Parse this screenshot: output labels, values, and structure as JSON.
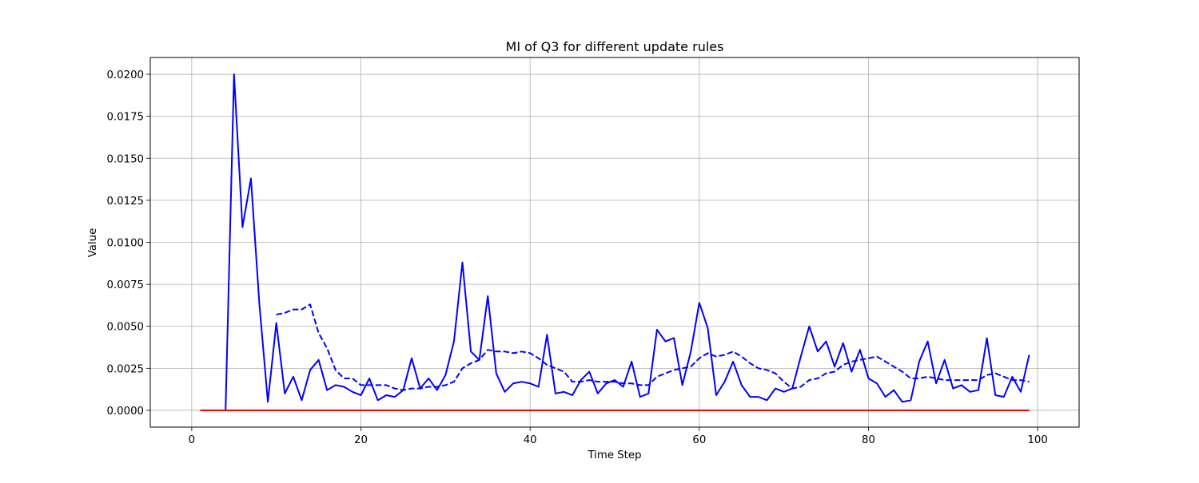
{
  "chart_data": {
    "type": "line",
    "title": "MI of Q3 for different update rules",
    "xlabel": "Time Step",
    "ylabel": "Value",
    "xlim": [
      -4.9,
      104.9
    ],
    "ylim": [
      -0.001,
      0.021
    ],
    "xticks": [
      0,
      20,
      40,
      60,
      80,
      100
    ],
    "yticks": [
      0.0,
      0.0025,
      0.005,
      0.0075,
      0.01,
      0.0125,
      0.015,
      0.0175,
      0.02
    ],
    "ytick_labels": [
      "0.0000",
      "0.0025",
      "0.0050",
      "0.0075",
      "0.0100",
      "0.0125",
      "0.0150",
      "0.0175",
      "0.0200"
    ],
    "grid": true,
    "legend": false,
    "series": [
      {
        "color": "#0000ff",
        "style": "solid",
        "x": [
          4,
          5,
          6,
          7,
          8,
          9,
          10,
          11,
          12,
          13,
          14,
          15,
          16,
          17,
          18,
          19,
          20,
          21,
          22,
          23,
          24,
          25,
          26,
          27,
          28,
          29,
          30,
          31,
          32,
          33,
          34,
          35,
          36,
          37,
          38,
          39,
          40,
          41,
          42,
          43,
          44,
          45,
          46,
          47,
          48,
          49,
          50,
          51,
          52,
          53,
          54,
          55,
          56,
          57,
          58,
          59,
          60,
          61,
          62,
          63,
          64,
          65,
          66,
          67,
          68,
          69,
          70,
          71,
          72,
          73,
          74,
          75,
          76,
          77,
          78,
          79,
          80,
          81,
          82,
          83,
          84,
          85,
          86,
          87,
          88,
          89,
          90,
          91,
          92,
          93,
          94,
          95,
          96,
          97,
          98,
          99
        ],
        "y": [
          0.0,
          0.02,
          0.0109,
          0.0138,
          0.0063,
          0.0005,
          0.0052,
          0.001,
          0.002,
          0.0006,
          0.0024,
          0.003,
          0.0012,
          0.0015,
          0.0014,
          0.0011,
          0.0009,
          0.0019,
          0.0006,
          0.0009,
          0.0008,
          0.0012,
          0.0031,
          0.0013,
          0.0019,
          0.0012,
          0.0021,
          0.0041,
          0.0088,
          0.0035,
          0.003,
          0.0068,
          0.0022,
          0.0011,
          0.0016,
          0.0017,
          0.0016,
          0.0014,
          0.0045,
          0.001,
          0.0011,
          0.0009,
          0.0018,
          0.0023,
          0.001,
          0.0016,
          0.0018,
          0.0014,
          0.0029,
          0.0008,
          0.001,
          0.0048,
          0.0041,
          0.0043,
          0.0015,
          0.0035,
          0.0064,
          0.0049,
          0.0009,
          0.0017,
          0.0029,
          0.0015,
          0.0008,
          0.0008,
          0.0006,
          0.0013,
          0.0011,
          0.0013,
          0.0032,
          0.005,
          0.0035,
          0.0041,
          0.0026,
          0.004,
          0.0023,
          0.0036,
          0.0019,
          0.0016,
          0.0008,
          0.0012,
          0.0005,
          0.0006,
          0.0029,
          0.0041,
          0.0016,
          0.003,
          0.0013,
          0.0015,
          0.0011,
          0.0012,
          0.0043,
          0.0009,
          0.0008,
          0.002,
          0.0011,
          0.0033
        ]
      },
      {
        "color": "#0000ff",
        "style": "dashed",
        "x": [
          10,
          11,
          12,
          13,
          14,
          15,
          16,
          17,
          18,
          19,
          20,
          21,
          22,
          23,
          24,
          25,
          26,
          27,
          28,
          29,
          30,
          31,
          32,
          33,
          34,
          35,
          36,
          37,
          38,
          39,
          40,
          41,
          42,
          43,
          44,
          45,
          46,
          47,
          48,
          49,
          50,
          51,
          52,
          53,
          54,
          55,
          56,
          57,
          58,
          59,
          60,
          61,
          62,
          63,
          64,
          65,
          66,
          67,
          68,
          69,
          70,
          71,
          72,
          73,
          74,
          75,
          76,
          77,
          78,
          79,
          80,
          81,
          82,
          83,
          84,
          85,
          86,
          87,
          88,
          89,
          90,
          91,
          92,
          93,
          94,
          95,
          96,
          97,
          98,
          99
        ],
        "y": [
          0.0057,
          0.0058,
          0.006,
          0.006,
          0.0063,
          0.0046,
          0.0037,
          0.0024,
          0.0019,
          0.0019,
          0.0015,
          0.0015,
          0.0015,
          0.0015,
          0.0013,
          0.0012,
          0.0013,
          0.0013,
          0.0014,
          0.0014,
          0.0015,
          0.0017,
          0.0025,
          0.0028,
          0.003,
          0.0036,
          0.0035,
          0.0035,
          0.0034,
          0.0035,
          0.0034,
          0.0031,
          0.0027,
          0.0025,
          0.0023,
          0.0017,
          0.0017,
          0.0018,
          0.0017,
          0.0017,
          0.0017,
          0.0016,
          0.0016,
          0.0015,
          0.0015,
          0.002,
          0.0022,
          0.0024,
          0.0025,
          0.0026,
          0.0031,
          0.0034,
          0.0032,
          0.0033,
          0.0035,
          0.0032,
          0.0028,
          0.0025,
          0.0024,
          0.0022,
          0.0017,
          0.0013,
          0.0014,
          0.0018,
          0.0019,
          0.0022,
          0.0023,
          0.0027,
          0.0029,
          0.003,
          0.0031,
          0.0032,
          0.0029,
          0.0026,
          0.0023,
          0.0019,
          0.0019,
          0.002,
          0.0019,
          0.0018,
          0.0018,
          0.0018,
          0.0018,
          0.0018,
          0.0021,
          0.0022,
          0.002,
          0.0018,
          0.0018,
          0.0017
        ]
      },
      {
        "color": "#ff0000",
        "style": "solid",
        "x": [
          1,
          99
        ],
        "y": [
          0.0,
          0.0
        ]
      }
    ]
  }
}
